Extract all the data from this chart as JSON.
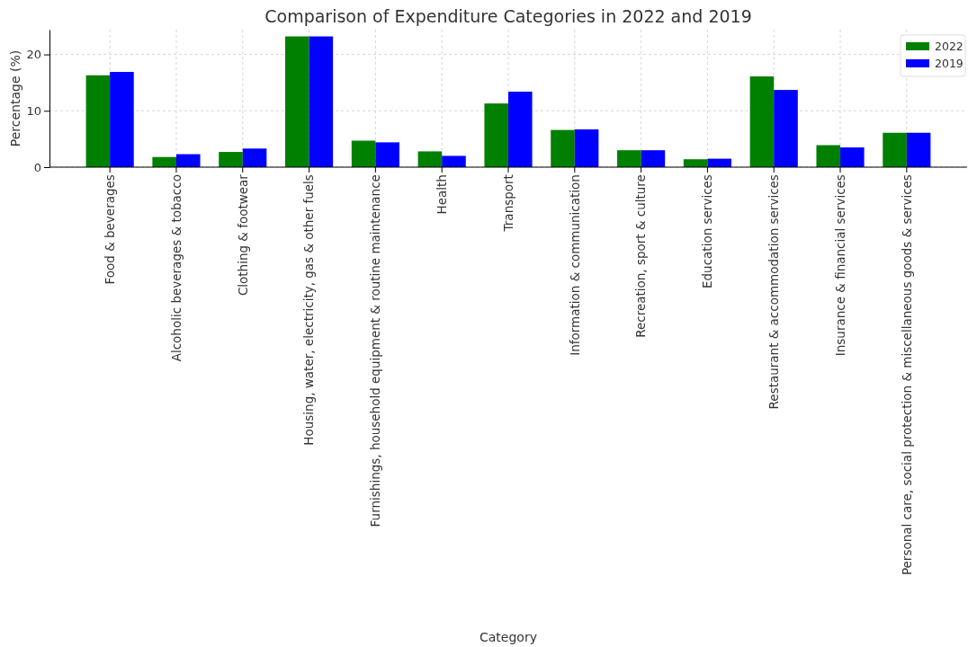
{
  "chart_data": {
    "type": "bar",
    "title": "Comparison of Expenditure Categories in 2022 and 2019",
    "xlabel": "Category",
    "ylabel": "Percentage (%)",
    "categories": [
      "Food & beverages",
      "Alcoholic beverages & tobacco",
      "Clothing & footwear",
      "Housing, water, electricity, gas & other fuels",
      "Furnishings, household equipment & routine maintenance",
      "Health",
      "Transport",
      "Information & communication",
      "Recreation, sport & culture",
      "Education services",
      "Restaurant & accommodation services",
      "Insurance & financial services",
      "Personal care, social protection & miscellaneous goods & services"
    ],
    "series": [
      {
        "name": "2022",
        "color": "#008000",
        "values": [
          16.3,
          1.8,
          2.7,
          23.2,
          4.7,
          2.8,
          11.3,
          6.6,
          3.0,
          1.4,
          16.1,
          3.9,
          6.1
        ]
      },
      {
        "name": "2019",
        "color": "#0000ff",
        "values": [
          16.9,
          2.3,
          3.3,
          23.2,
          4.4,
          2.0,
          13.4,
          6.7,
          3.0,
          1.5,
          13.7,
          3.5,
          6.1
        ]
      }
    ],
    "ylim": [
      0,
      24.4
    ],
    "yticks": [
      0,
      10,
      20
    ],
    "grid": true,
    "legend": "top right"
  }
}
